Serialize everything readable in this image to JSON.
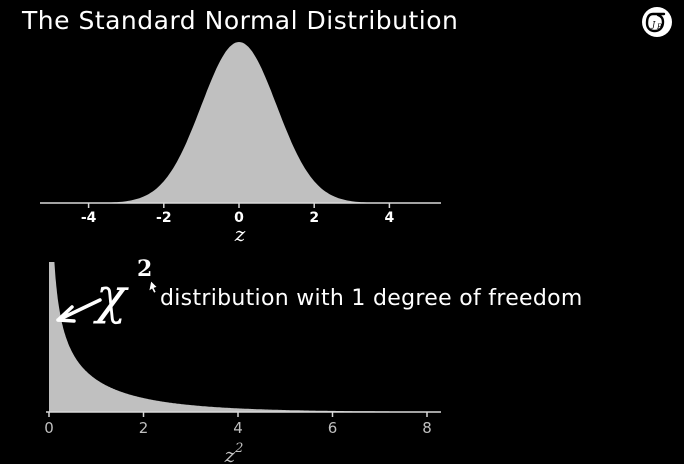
{
  "title": "The Standard Normal Distribution",
  "logo_text": "σ",
  "annotation": {
    "symbol": "χ",
    "superscript": "2",
    "text": "distribution with 1 degree of freedom"
  },
  "colors": {
    "background": "#000000",
    "fill": "#c0c0c0",
    "text": "#ffffff",
    "axis": "#d9d9d9"
  },
  "chart_data": [
    {
      "type": "area",
      "function": "standard normal density",
      "xlabel": "z",
      "xlim": [
        -5,
        5
      ],
      "xticks": [
        -4,
        -2,
        0,
        2,
        4
      ],
      "x": [
        -5,
        -4.5,
        -4,
        -3.5,
        -3,
        -2.5,
        -2,
        -1.5,
        -1,
        -0.5,
        0,
        0.5,
        1,
        1.5,
        2,
        2.5,
        3,
        3.5,
        4,
        4.5,
        5
      ],
      "y": [
        1.5e-06,
        1.6e-05,
        0.00013,
        0.00087,
        0.0044,
        0.0175,
        0.054,
        0.1295,
        0.242,
        0.352,
        0.3989,
        0.352,
        0.242,
        0.1295,
        0.054,
        0.0175,
        0.0044,
        0.00087,
        0.00013,
        1.6e-05,
        1.5e-06
      ]
    },
    {
      "type": "area",
      "function": "chi-square density, 1 degree of freedom",
      "xlabel": "z",
      "xlabel_sup": "2",
      "xlim": [
        0,
        8
      ],
      "xticks": [
        0,
        2,
        4,
        6,
        8
      ],
      "x": [
        0.02,
        0.05,
        0.1,
        0.2,
        0.3,
        0.5,
        0.75,
        1,
        1.5,
        2,
        2.5,
        3,
        4,
        5,
        6,
        7,
        8
      ],
      "y": [
        2.78,
        1.72,
        1.2,
        0.807,
        0.627,
        0.439,
        0.316,
        0.242,
        0.154,
        0.104,
        0.072,
        0.051,
        0.027,
        0.015,
        0.008,
        0.0045,
        0.0025
      ]
    }
  ]
}
